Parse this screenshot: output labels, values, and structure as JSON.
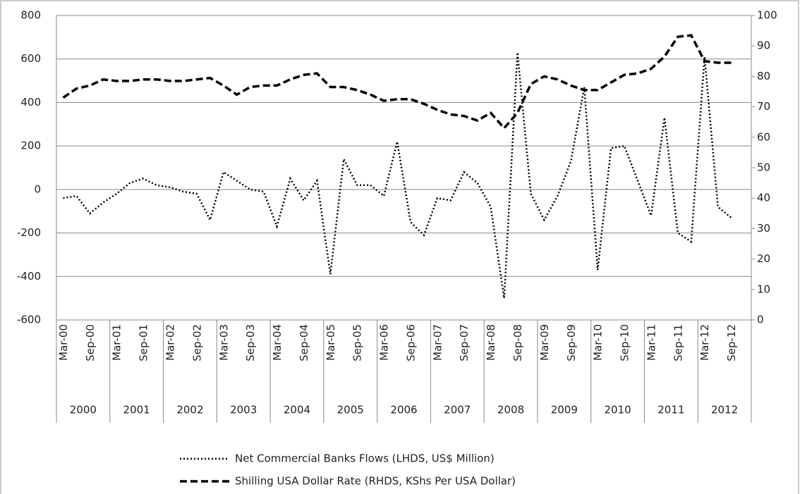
{
  "chart_data": {
    "type": "line",
    "categories": [
      "Mar-00",
      null,
      "Sep-00",
      null,
      "Mar-01",
      null,
      "Sep-01",
      null,
      "Mar-02",
      null,
      "Sep-02",
      null,
      "Mar-03",
      null,
      "Sep-03",
      null,
      "Mar-04",
      null,
      "Sep-04",
      null,
      "Mar-05",
      null,
      "Sep-05",
      null,
      "Mar-06",
      null,
      "Sep-06",
      null,
      "Mar-07",
      null,
      "Sep-07",
      null,
      "Mar-08",
      null,
      "Sep-08",
      null,
      "Mar-09",
      null,
      "Sep-09",
      null,
      "Mar-10",
      null,
      "Sep-10",
      null,
      "Mar-11",
      null,
      "Sep-11",
      null,
      "Mar-12",
      null,
      "Sep-12",
      null
    ],
    "year_labels": [
      "2000",
      "2001",
      "2002",
      "2003",
      "2004",
      "2005",
      "2006",
      "2007",
      "2008",
      "2009",
      "2010",
      "2011",
      "2012"
    ],
    "series": [
      {
        "name": "Net Commercial Banks Flows (LHDS, US$ Million)",
        "color": "#000000",
        "line_style": "dotted",
        "values": [
          -40,
          -30,
          -110,
          -60,
          -20,
          30,
          50,
          20,
          10,
          -10,
          -20,
          -140,
          80,
          40,
          0,
          -10,
          -170,
          50,
          -50,
          40,
          -390,
          140,
          20,
          20,
          -30,
          220,
          -150,
          -210,
          -40,
          -50,
          80,
          30,
          -80,
          -500,
          630,
          -20,
          -140,
          -30,
          130,
          470,
          -370,
          190,
          200,
          40,
          -120,
          330,
          -200,
          -240,
          610,
          -80,
          -130,
          null
        ]
      },
      {
        "name": "Shilling USA Dollar Rate (RHDS, KShs Per USA Dollar)",
        "color": "#000000",
        "line_style": "dashed",
        "axis": "y2",
        "values": [
          73,
          76,
          77,
          79,
          78.5,
          78.5,
          79,
          79,
          78.5,
          78.5,
          79,
          79.5,
          77,
          74,
          76.5,
          77,
          77,
          79,
          80.5,
          81,
          76.5,
          76.5,
          75.5,
          74,
          72,
          72.5,
          72.5,
          71,
          69,
          67.5,
          67,
          65.5,
          68,
          63,
          68,
          77.5,
          80,
          79,
          77,
          75.5,
          75.5,
          78,
          80.5,
          81,
          82.5,
          86.5,
          93,
          93.5,
          85,
          84.5,
          84.5,
          null
        ]
      }
    ],
    "ylim": [
      -600,
      800
    ],
    "yticks": [
      -600,
      -400,
      -200,
      0,
      200,
      400,
      600,
      800
    ],
    "y2lim": [
      0,
      100
    ],
    "y2ticks": [
      0,
      10,
      20,
      30,
      40,
      50,
      60,
      70,
      80,
      90,
      100
    ],
    "grid": true,
    "legend": "bottom"
  }
}
